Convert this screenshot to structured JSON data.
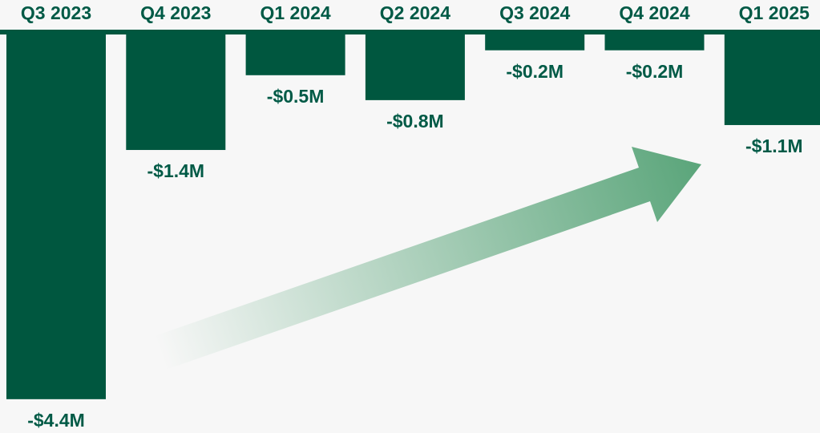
{
  "chart_data": {
    "type": "bar",
    "categories": [
      "Q3 2023",
      "Q4 2023",
      "Q1 2024",
      "Q2 2024",
      "Q3 2024",
      "Q4 2024",
      "Q1 2025"
    ],
    "values": [
      -4.4,
      -1.4,
      -0.5,
      -0.8,
      -0.2,
      -0.2,
      -1.1
    ],
    "value_labels": [
      "-$4.4M",
      "-$1.4M",
      "-$0.5M",
      "-$0.8M",
      "-$0.2M",
      "-$0.2M",
      "-$1.1M"
    ],
    "color": "#00573f"
  }
}
